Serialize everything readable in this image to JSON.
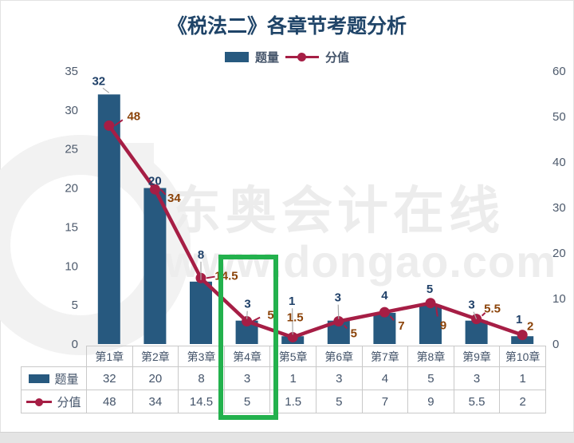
{
  "title": "《税法二》各章节考题分析",
  "watermark": {
    "brand": "东奥会计在线",
    "url": "www.dongao.com"
  },
  "colors": {
    "bar": "#27597f",
    "line": "#a61e45",
    "bar_label": "#1f4068",
    "line_label": "#8b4309",
    "axis_text": "#4d5a6c",
    "highlight_green": "#23b14d",
    "title_blue": "#1f4468",
    "table_border": "#c9c9c9"
  },
  "chart_data": {
    "type": "bar",
    "combo": "bar+line",
    "title": "《税法二》各章节考题分析",
    "categories": [
      "第1章",
      "第2章",
      "第3章",
      "第4章",
      "第5章",
      "第6章",
      "第7章",
      "第8章",
      "第9章",
      "第10章"
    ],
    "series": [
      {
        "name": "题量",
        "type": "bar",
        "axis": "left",
        "values": [
          32,
          20,
          8,
          3,
          1,
          3,
          4,
          5,
          3,
          1
        ],
        "label_offsets": [
          [
            -13,
            -17
          ],
          [
            0,
            -9
          ],
          [
            0,
            -34
          ],
          [
            1,
            -21
          ],
          [
            -1,
            -44
          ],
          [
            -1,
            -29
          ],
          [
            0,
            -22
          ],
          [
            -1,
            -20
          ],
          [
            -6,
            -20
          ],
          [
            -4,
            -21
          ]
        ],
        "label_leaders": [
          true,
          false,
          true,
          true,
          true,
          true,
          false,
          false,
          true,
          false
        ]
      },
      {
        "name": "分值",
        "type": "line",
        "axis": "right",
        "values": [
          48,
          34,
          14.5,
          5,
          1.5,
          5,
          7,
          9,
          5.5,
          2
        ],
        "label_offsets": [
          [
            31,
            -12
          ],
          [
            24,
            11
          ],
          [
            32,
            -3
          ],
          [
            30,
            -8
          ],
          [
            3,
            -25
          ],
          [
            19,
            15
          ],
          [
            21,
            17
          ],
          [
            16,
            28
          ],
          [
            20,
            -13
          ],
          [
            10,
            -11
          ]
        ],
        "label_leaders": [
          true,
          true,
          true,
          true,
          false,
          true,
          true,
          true,
          true,
          false
        ]
      }
    ],
    "left_axis": {
      "min": 0,
      "max": 35,
      "step": 5
    },
    "right_axis": {
      "min": 0,
      "max": 60,
      "step": 10
    },
    "grid": false,
    "legend_position": "top",
    "data_table_shown": true,
    "highlight": {
      "category": "第4章",
      "note": "green rectangle annotation"
    }
  }
}
